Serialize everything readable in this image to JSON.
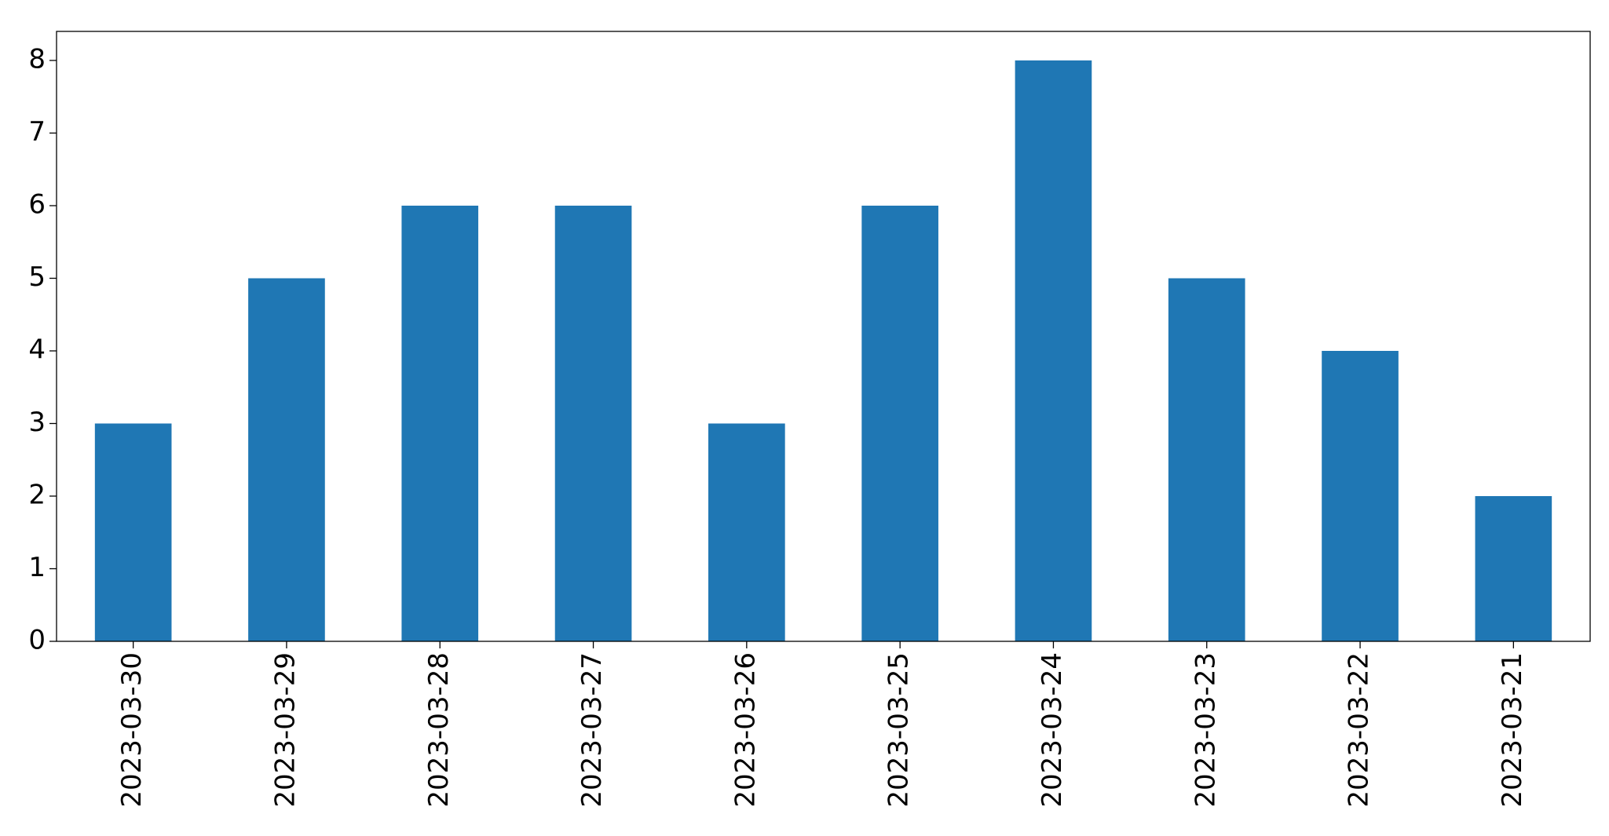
{
  "chart_data": {
    "type": "bar",
    "categories": [
      "2023-03-30",
      "2023-03-29",
      "2023-03-28",
      "2023-03-27",
      "2023-03-26",
      "2023-03-25",
      "2023-03-24",
      "2023-03-23",
      "2023-03-22",
      "2023-03-21"
    ],
    "values": [
      3,
      5,
      6,
      6,
      3,
      6,
      8,
      5,
      4,
      2
    ],
    "color": "#1f77b4",
    "ylim": [
      0,
      8.4
    ],
    "yticks": [
      0,
      1,
      2,
      3,
      4,
      5,
      6,
      7,
      8
    ],
    "grid": false
  }
}
